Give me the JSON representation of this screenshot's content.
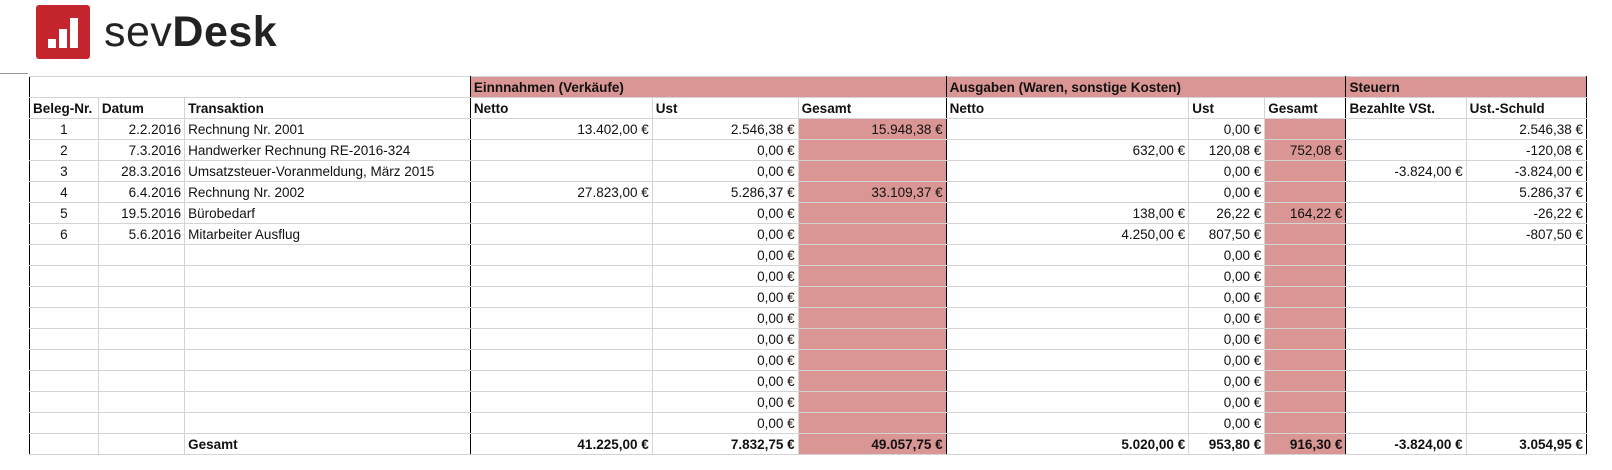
{
  "logo": {
    "text_light": "sev",
    "text_bold": "Desk"
  },
  "groups": {
    "income": "Einnnahmen (Verkäufe)",
    "expenses": "Ausgaben (Waren, sonstige Kosten)",
    "taxes": "Steuern"
  },
  "headers": [
    "Beleg-Nr.",
    "Datum",
    "Transaktion",
    "Netto",
    "Ust",
    "Gesamt",
    "Netto",
    "Ust",
    "Gesamt",
    "Bezahlte VSt.",
    "Ust.-Schuld"
  ],
  "rows": [
    [
      "1",
      "2.2.2016",
      "Rechnung Nr. 2001",
      "13.402,00 €",
      "2.546,38 €",
      "15.948,38 €",
      "",
      "0,00 €",
      "",
      "",
      "2.546,38 €"
    ],
    [
      "2",
      "7.3.2016",
      "Handwerker Rechnung RE-2016-324",
      "",
      "0,00 €",
      "",
      "632,00 €",
      "120,08 €",
      "752,08 €",
      "",
      "-120,08 €"
    ],
    [
      "3",
      "28.3.2016",
      "Umsatzsteuer-Voranmeldung, März 2015",
      "",
      "0,00 €",
      "",
      "",
      "0,00 €",
      "",
      "-3.824,00 €",
      "-3.824,00 €"
    ],
    [
      "4",
      "6.4.2016",
      "Rechnung Nr. 2002",
      "27.823,00 €",
      "5.286,37 €",
      "33.109,37 €",
      "",
      "0,00 €",
      "",
      "",
      "5.286,37 €"
    ],
    [
      "5",
      "19.5.2016",
      "Bürobedarf",
      "",
      "0,00 €",
      "",
      "138,00 €",
      "26,22 €",
      "164,22 €",
      "",
      "-26,22 €"
    ],
    [
      "6",
      "5.6.2016",
      "Mitarbeiter Ausflug",
      "",
      "0,00 €",
      "",
      "4.250,00 €",
      "807,50 €",
      "",
      "",
      "-807,50 €"
    ],
    [
      "",
      "",
      "",
      "",
      "0,00 €",
      "",
      "",
      "0,00 €",
      "",
      "",
      ""
    ],
    [
      "",
      "",
      "",
      "",
      "0,00 €",
      "",
      "",
      "0,00 €",
      "",
      "",
      ""
    ],
    [
      "",
      "",
      "",
      "",
      "0,00 €",
      "",
      "",
      "0,00 €",
      "",
      "",
      ""
    ],
    [
      "",
      "",
      "",
      "",
      "0,00 €",
      "",
      "",
      "0,00 €",
      "",
      "",
      ""
    ],
    [
      "",
      "",
      "",
      "",
      "0,00 €",
      "",
      "",
      "0,00 €",
      "",
      "",
      ""
    ],
    [
      "",
      "",
      "",
      "",
      "0,00 €",
      "",
      "",
      "0,00 €",
      "",
      "",
      ""
    ],
    [
      "",
      "",
      "",
      "",
      "0,00 €",
      "",
      "",
      "0,00 €",
      "",
      "",
      ""
    ],
    [
      "",
      "",
      "",
      "",
      "0,00 €",
      "",
      "",
      "0,00 €",
      "",
      "",
      ""
    ],
    [
      "",
      "",
      "",
      "",
      "0,00 €",
      "",
      "",
      "0,00 €",
      "",
      "",
      ""
    ]
  ],
  "totals": [
    "",
    "",
    "Gesamt",
    "41.225,00 €",
    "7.832,75 €",
    "49.057,75 €",
    "5.020,00 €",
    "953,80 €",
    "916,30 €",
    "-3.824,00 €",
    "3.054,95 €"
  ],
  "colors": {
    "brand": "#c5252c",
    "highlight": "#da9694"
  }
}
